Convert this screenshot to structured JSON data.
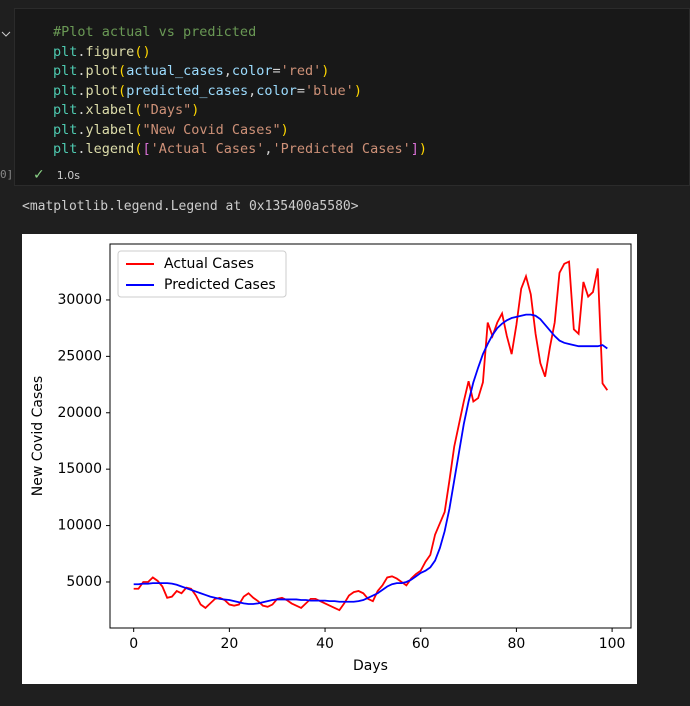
{
  "cell": {
    "execution_label": "0]",
    "code_lines": [
      [
        {
          "text": "#Plot actual vs predicted",
          "color": "#6a9955"
        }
      ],
      [
        {
          "text": "plt",
          "color": "#4ec9b0"
        },
        {
          "text": ".",
          "color": "#d4d4d4"
        },
        {
          "text": "figure",
          "color": "#dcdcaa"
        },
        {
          "text": "()",
          "color": "#ffd700"
        }
      ],
      [
        {
          "text": "plt",
          "color": "#4ec9b0"
        },
        {
          "text": ".",
          "color": "#d4d4d4"
        },
        {
          "text": "plot",
          "color": "#dcdcaa"
        },
        {
          "text": "(",
          "color": "#ffd700"
        },
        {
          "text": "actual_cases",
          "color": "#9cdcfe"
        },
        {
          "text": ",",
          "color": "#d4d4d4"
        },
        {
          "text": "color",
          "color": "#9cdcfe"
        },
        {
          "text": "=",
          "color": "#d4d4d4"
        },
        {
          "text": "'red'",
          "color": "#ce9178"
        },
        {
          "text": ")",
          "color": "#ffd700"
        }
      ],
      [
        {
          "text": "plt",
          "color": "#4ec9b0"
        },
        {
          "text": ".",
          "color": "#d4d4d4"
        },
        {
          "text": "plot",
          "color": "#dcdcaa"
        },
        {
          "text": "(",
          "color": "#ffd700"
        },
        {
          "text": "predicted_cases",
          "color": "#9cdcfe"
        },
        {
          "text": ",",
          "color": "#d4d4d4"
        },
        {
          "text": "color",
          "color": "#9cdcfe"
        },
        {
          "text": "=",
          "color": "#d4d4d4"
        },
        {
          "text": "'blue'",
          "color": "#ce9178"
        },
        {
          "text": ")",
          "color": "#ffd700"
        }
      ],
      [
        {
          "text": "plt",
          "color": "#4ec9b0"
        },
        {
          "text": ".",
          "color": "#d4d4d4"
        },
        {
          "text": "xlabel",
          "color": "#dcdcaa"
        },
        {
          "text": "(",
          "color": "#ffd700"
        },
        {
          "text": "\"Days\"",
          "color": "#ce9178"
        },
        {
          "text": ")",
          "color": "#ffd700"
        }
      ],
      [
        {
          "text": "plt",
          "color": "#4ec9b0"
        },
        {
          "text": ".",
          "color": "#d4d4d4"
        },
        {
          "text": "ylabel",
          "color": "#dcdcaa"
        },
        {
          "text": "(",
          "color": "#ffd700"
        },
        {
          "text": "\"New Covid Cases\"",
          "color": "#ce9178"
        },
        {
          "text": ")",
          "color": "#ffd700"
        }
      ],
      [
        {
          "text": "plt",
          "color": "#4ec9b0"
        },
        {
          "text": ".",
          "color": "#d4d4d4"
        },
        {
          "text": "legend",
          "color": "#dcdcaa"
        },
        {
          "text": "(",
          "color": "#ffd700"
        },
        {
          "text": "[",
          "color": "#da70d6"
        },
        {
          "text": "'Actual Cases'",
          "color": "#ce9178"
        },
        {
          "text": ",",
          "color": "#d4d4d4"
        },
        {
          "text": "'Predicted Cases'",
          "color": "#ce9178"
        },
        {
          "text": "]",
          "color": "#da70d6"
        },
        {
          "text": ")",
          "color": "#ffd700"
        }
      ]
    ],
    "status": "1.0s"
  },
  "output": {
    "text": "<matplotlib.legend.Legend at 0x135400a5580>"
  },
  "chart_data": {
    "type": "line",
    "x_label": "Days",
    "y_label": "New Covid Cases",
    "x": [
      0,
      1,
      2,
      3,
      4,
      5,
      6,
      7,
      8,
      9,
      10,
      11,
      12,
      13,
      14,
      15,
      16,
      17,
      18,
      19,
      20,
      21,
      22,
      23,
      24,
      25,
      26,
      27,
      28,
      29,
      30,
      31,
      32,
      33,
      34,
      35,
      36,
      37,
      38,
      39,
      40,
      41,
      42,
      43,
      44,
      45,
      46,
      47,
      48,
      49,
      50,
      51,
      52,
      53,
      54,
      55,
      56,
      57,
      58,
      59,
      60,
      61,
      62,
      63,
      64,
      65,
      66,
      67,
      68,
      69,
      70,
      71,
      72,
      73,
      74,
      75,
      76,
      77,
      78,
      79,
      80,
      81,
      82,
      83,
      84,
      85,
      86,
      87,
      88,
      89,
      90,
      91,
      92,
      93,
      94,
      95,
      96,
      97,
      98,
      99
    ],
    "series": [
      {
        "name": "Actual Cases",
        "color": "red",
        "values": [
          4400,
          4400,
          5000,
          5000,
          5400,
          5100,
          4600,
          3600,
          3700,
          4200,
          4000,
          4500,
          4400,
          3800,
          3000,
          2700,
          3100,
          3500,
          3600,
          3400,
          3000,
          2900,
          3000,
          3700,
          4000,
          3600,
          3300,
          2900,
          2800,
          3000,
          3500,
          3600,
          3400,
          3100,
          2900,
          2700,
          3100,
          3500,
          3500,
          3300,
          3100,
          2900,
          2700,
          2500,
          3100,
          3800,
          4100,
          4200,
          4000,
          3500,
          3300,
          4200,
          4700,
          5400,
          5500,
          5300,
          5000,
          4700,
          5300,
          5700,
          6000,
          6800,
          7400,
          9200,
          10200,
          11200,
          14000,
          17000,
          19000,
          21000,
          22800,
          21000,
          21300,
          22700,
          28000,
          26800,
          28000,
          28800,
          26800,
          25200,
          27800,
          31000,
          32100,
          30500,
          27000,
          24400,
          23200,
          25800,
          28000,
          32400,
          33200,
          33400,
          27400,
          27000,
          31600,
          30300,
          30700,
          32800,
          22600,
          22000
        ]
      },
      {
        "name": "Predicted Cases",
        "color": "blue",
        "values": [
          4800,
          4800,
          4850,
          4850,
          4900,
          4900,
          4900,
          4900,
          4850,
          4750,
          4600,
          4450,
          4300,
          4150,
          4000,
          3850,
          3700,
          3600,
          3500,
          3450,
          3400,
          3300,
          3200,
          3100,
          3050,
          3050,
          3100,
          3200,
          3300,
          3400,
          3450,
          3450,
          3450,
          3450,
          3450,
          3400,
          3400,
          3350,
          3350,
          3350,
          3350,
          3300,
          3300,
          3250,
          3250,
          3250,
          3250,
          3300,
          3400,
          3600,
          3800,
          4000,
          4300,
          4600,
          4800,
          4900,
          4900,
          5000,
          5200,
          5500,
          5800,
          6000,
          6300,
          6900,
          8000,
          9500,
          11500,
          14000,
          16500,
          19000,
          21000,
          22700,
          24000,
          25200,
          26100,
          26900,
          27500,
          27900,
          28200,
          28400,
          28500,
          28600,
          28700,
          28700,
          28600,
          28300,
          27800,
          27300,
          26800,
          26400,
          26200,
          26100,
          26000,
          25900,
          25900,
          25900,
          25900,
          25900,
          26000,
          25700
        ]
      }
    ],
    "xlim": [
      -4.95,
      103.95
    ],
    "xticks": [
      0,
      20,
      40,
      60,
      80,
      100
    ],
    "ylim": [
      920,
      34960
    ],
    "yticks": [
      5000,
      10000,
      15000,
      20000,
      25000,
      30000
    ],
    "legend": "upper left"
  }
}
